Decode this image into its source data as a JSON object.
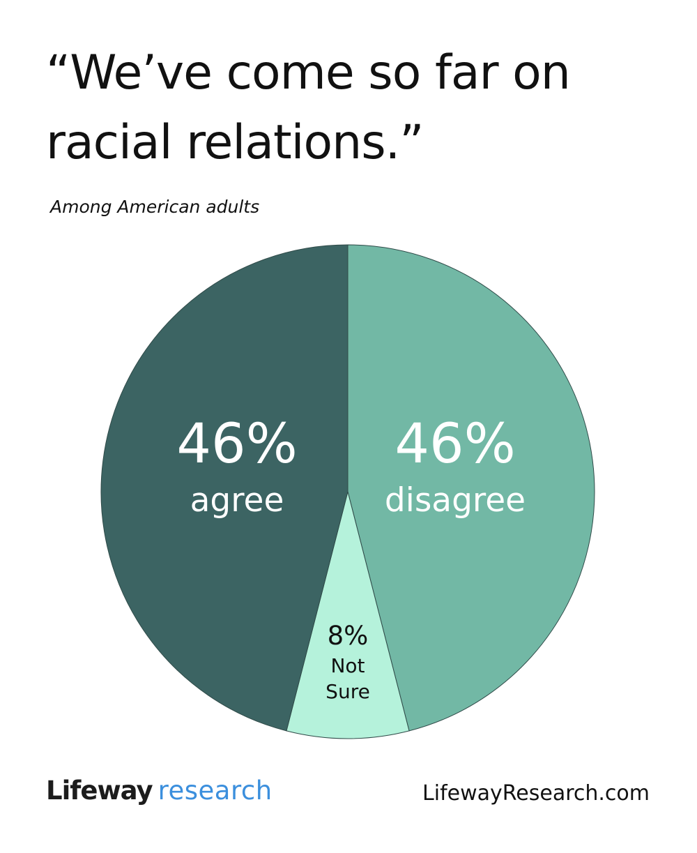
{
  "title_lines": [
    "“We’ve come so far on",
    "racial relations.”"
  ],
  "subtitle": "Among American adults",
  "chart_data": {
    "type": "pie",
    "start": "12 o'clock",
    "direction": "clockwise",
    "slices": [
      {
        "value": 46,
        "pct_label": "46%",
        "label": "disagree",
        "color": "#72b8a5",
        "text_color": "#ffffff"
      },
      {
        "value": 8,
        "pct_label": "8%",
        "label_lines": [
          "Not",
          "Sure"
        ],
        "color": "#b5f2db",
        "text_color": "#111111"
      },
      {
        "value": 46,
        "pct_label": "46%",
        "label": "agree",
        "color": "#3c6463",
        "text_color": "#ffffff"
      }
    ]
  },
  "footer": {
    "logo_word1": "Lifeway",
    "logo_word2": "research",
    "logo_word2_color": "#3b8fdd",
    "url": "LifewayResearch.com"
  }
}
